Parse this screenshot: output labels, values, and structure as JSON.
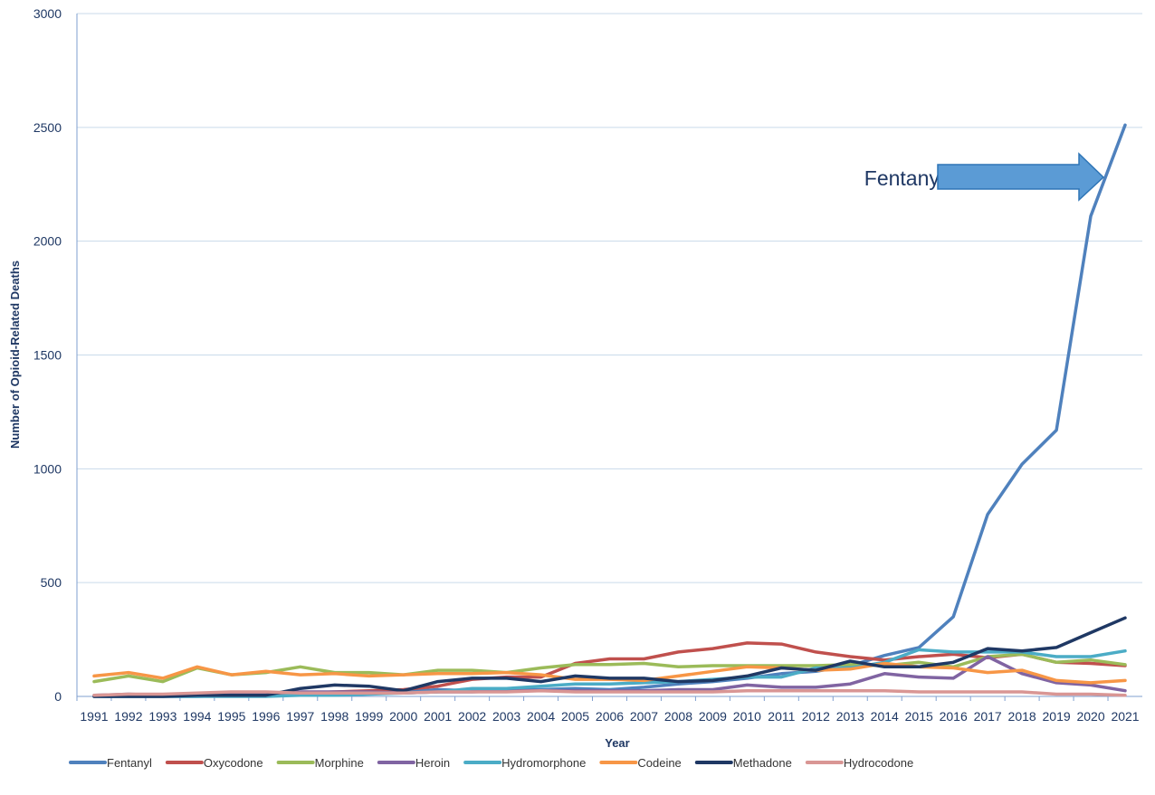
{
  "chart_data": {
    "type": "line",
    "title": "",
    "xlabel": "Year",
    "ylabel": "Number of Opioid-Related Deaths",
    "ylim": [
      0,
      3000
    ],
    "yticks": [
      0,
      500,
      1000,
      1500,
      2000,
      2500,
      3000
    ],
    "x": [
      "1991",
      "1992",
      "1993",
      "1994",
      "1995",
      "1996",
      "1997",
      "1998",
      "1999",
      "2000",
      "2001",
      "2002",
      "2003",
      "2004",
      "2005",
      "2006",
      "2007",
      "2008",
      "2009",
      "2010",
      "2011",
      "2012",
      "2013",
      "2014",
      "2015",
      "2016",
      "2017",
      "2018",
      "2019",
      "2020",
      "2021"
    ],
    "grid": "horizontal",
    "legend_position": "bottom",
    "annotation": {
      "text": "Fentanyl",
      "arrow_color": "#5b9bd5",
      "arrow_border": "#2e75b6"
    },
    "series": [
      {
        "name": "Fentanyl",
        "color": "#4f81bd",
        "values": [
          0,
          0,
          0,
          0,
          5,
          5,
          10,
          10,
          15,
          20,
          30,
          25,
          30,
          30,
          35,
          30,
          40,
          55,
          65,
          80,
          100,
          110,
          135,
          180,
          215,
          350,
          800,
          1020,
          1170,
          2110,
          2510
        ]
      },
      {
        "name": "Oxycodone",
        "color": "#c0504d",
        "values": [
          0,
          5,
          5,
          10,
          10,
          10,
          15,
          20,
          25,
          30,
          45,
          75,
          85,
          85,
          145,
          165,
          165,
          195,
          210,
          235,
          230,
          195,
          175,
          160,
          175,
          185,
          170,
          185,
          150,
          145,
          135
        ]
      },
      {
        "name": "Morphine",
        "color": "#9bbb59",
        "values": [
          65,
          90,
          65,
          125,
          95,
          105,
          130,
          105,
          105,
          95,
          115,
          115,
          105,
          125,
          140,
          140,
          145,
          130,
          135,
          135,
          135,
          135,
          140,
          135,
          150,
          130,
          175,
          185,
          150,
          160,
          140
        ]
      },
      {
        "name": "Heroin",
        "color": "#8064a2",
        "values": [
          5,
          10,
          5,
          10,
          15,
          15,
          20,
          20,
          20,
          15,
          20,
          20,
          25,
          25,
          25,
          25,
          25,
          30,
          30,
          50,
          40,
          40,
          55,
          100,
          85,
          80,
          175,
          100,
          60,
          50,
          25
        ]
      },
      {
        "name": "Hydromorphone",
        "color": "#4bacc6",
        "values": [
          0,
          0,
          0,
          0,
          0,
          0,
          5,
          5,
          10,
          15,
          20,
          35,
          35,
          45,
          55,
          55,
          60,
          65,
          75,
          85,
          85,
          125,
          125,
          150,
          205,
          195,
          195,
          195,
          175,
          175,
          200
        ]
      },
      {
        "name": "Codeine",
        "color": "#f79646",
        "values": [
          90,
          105,
          80,
          130,
          95,
          110,
          95,
          100,
          90,
          95,
          100,
          100,
          105,
          95,
          75,
          75,
          70,
          90,
          110,
          130,
          125,
          115,
          120,
          145,
          130,
          125,
          105,
          115,
          70,
          60,
          70
        ]
      },
      {
        "name": "Methadone",
        "color": "#1f3864",
        "values": [
          0,
          0,
          0,
          5,
          5,
          5,
          35,
          50,
          45,
          25,
          65,
          80,
          80,
          65,
          90,
          80,
          80,
          65,
          70,
          90,
          125,
          115,
          155,
          130,
          130,
          150,
          210,
          200,
          215,
          280,
          345
        ]
      },
      {
        "name": "Hydrocodone",
        "color": "#d99694",
        "values": [
          5,
          10,
          10,
          15,
          20,
          20,
          15,
          15,
          15,
          15,
          20,
          20,
          20,
          25,
          20,
          20,
          20,
          20,
          20,
          25,
          25,
          25,
          25,
          25,
          20,
          20,
          20,
          20,
          10,
          10,
          5
        ]
      }
    ]
  }
}
